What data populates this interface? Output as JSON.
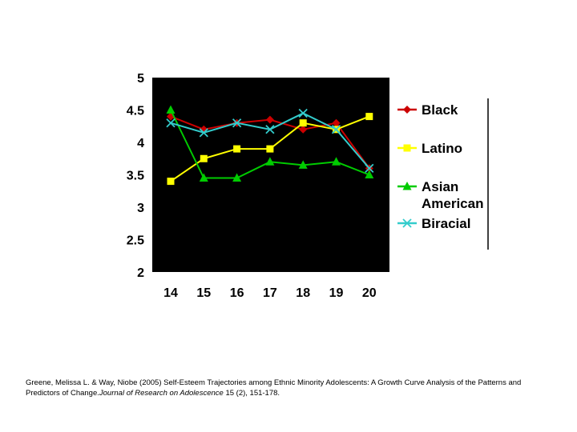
{
  "chart_data": {
    "type": "line",
    "title": "",
    "xlabel": "",
    "ylabel": "",
    "x": [
      "14",
      "15",
      "16",
      "17",
      "18",
      "19",
      "20"
    ],
    "ylim": [
      2,
      5
    ],
    "yticks": [
      "2",
      "2.5",
      "3",
      "3.5",
      "4",
      "4.5",
      "5"
    ],
    "plot_background": "#000000",
    "grid": false,
    "legend_position": "right",
    "series": [
      {
        "name": "Black",
        "color": "#cc0000",
        "marker": "diamond",
        "values": [
          4.4,
          4.2,
          4.3,
          4.35,
          4.2,
          4.3,
          3.6
        ]
      },
      {
        "name": "Latino",
        "color": "#ffff00",
        "marker": "square",
        "values": [
          3.4,
          3.75,
          3.9,
          3.9,
          4.3,
          4.2,
          4.4
        ]
      },
      {
        "name": "Asian American",
        "color": "#00cc00",
        "marker": "triangle",
        "values": [
          4.5,
          3.45,
          3.45,
          3.7,
          3.65,
          3.7,
          3.5
        ]
      },
      {
        "name": "Biracial",
        "color": "#33cccc",
        "marker": "x",
        "values": [
          4.3,
          4.15,
          4.3,
          4.2,
          4.45,
          4.2,
          3.6
        ]
      }
    ]
  },
  "legend": {
    "items": [
      {
        "lines": [
          "Black"
        ]
      },
      {
        "lines": [
          "Latino"
        ]
      },
      {
        "lines": [
          "Asian",
          "American"
        ]
      },
      {
        "lines": [
          "Biracial"
        ]
      }
    ]
  },
  "citation": {
    "part1": "Greene, Melissa L. & Way, Niobe (2005) Self-Esteem Trajectories among Ethnic Minority Adolescents: A Growth Curve Analysis of the Patterns and Predictors of Change.",
    "journal": "Journal of Research on Adolescence",
    "part2": " 15 (2), 151-178."
  }
}
